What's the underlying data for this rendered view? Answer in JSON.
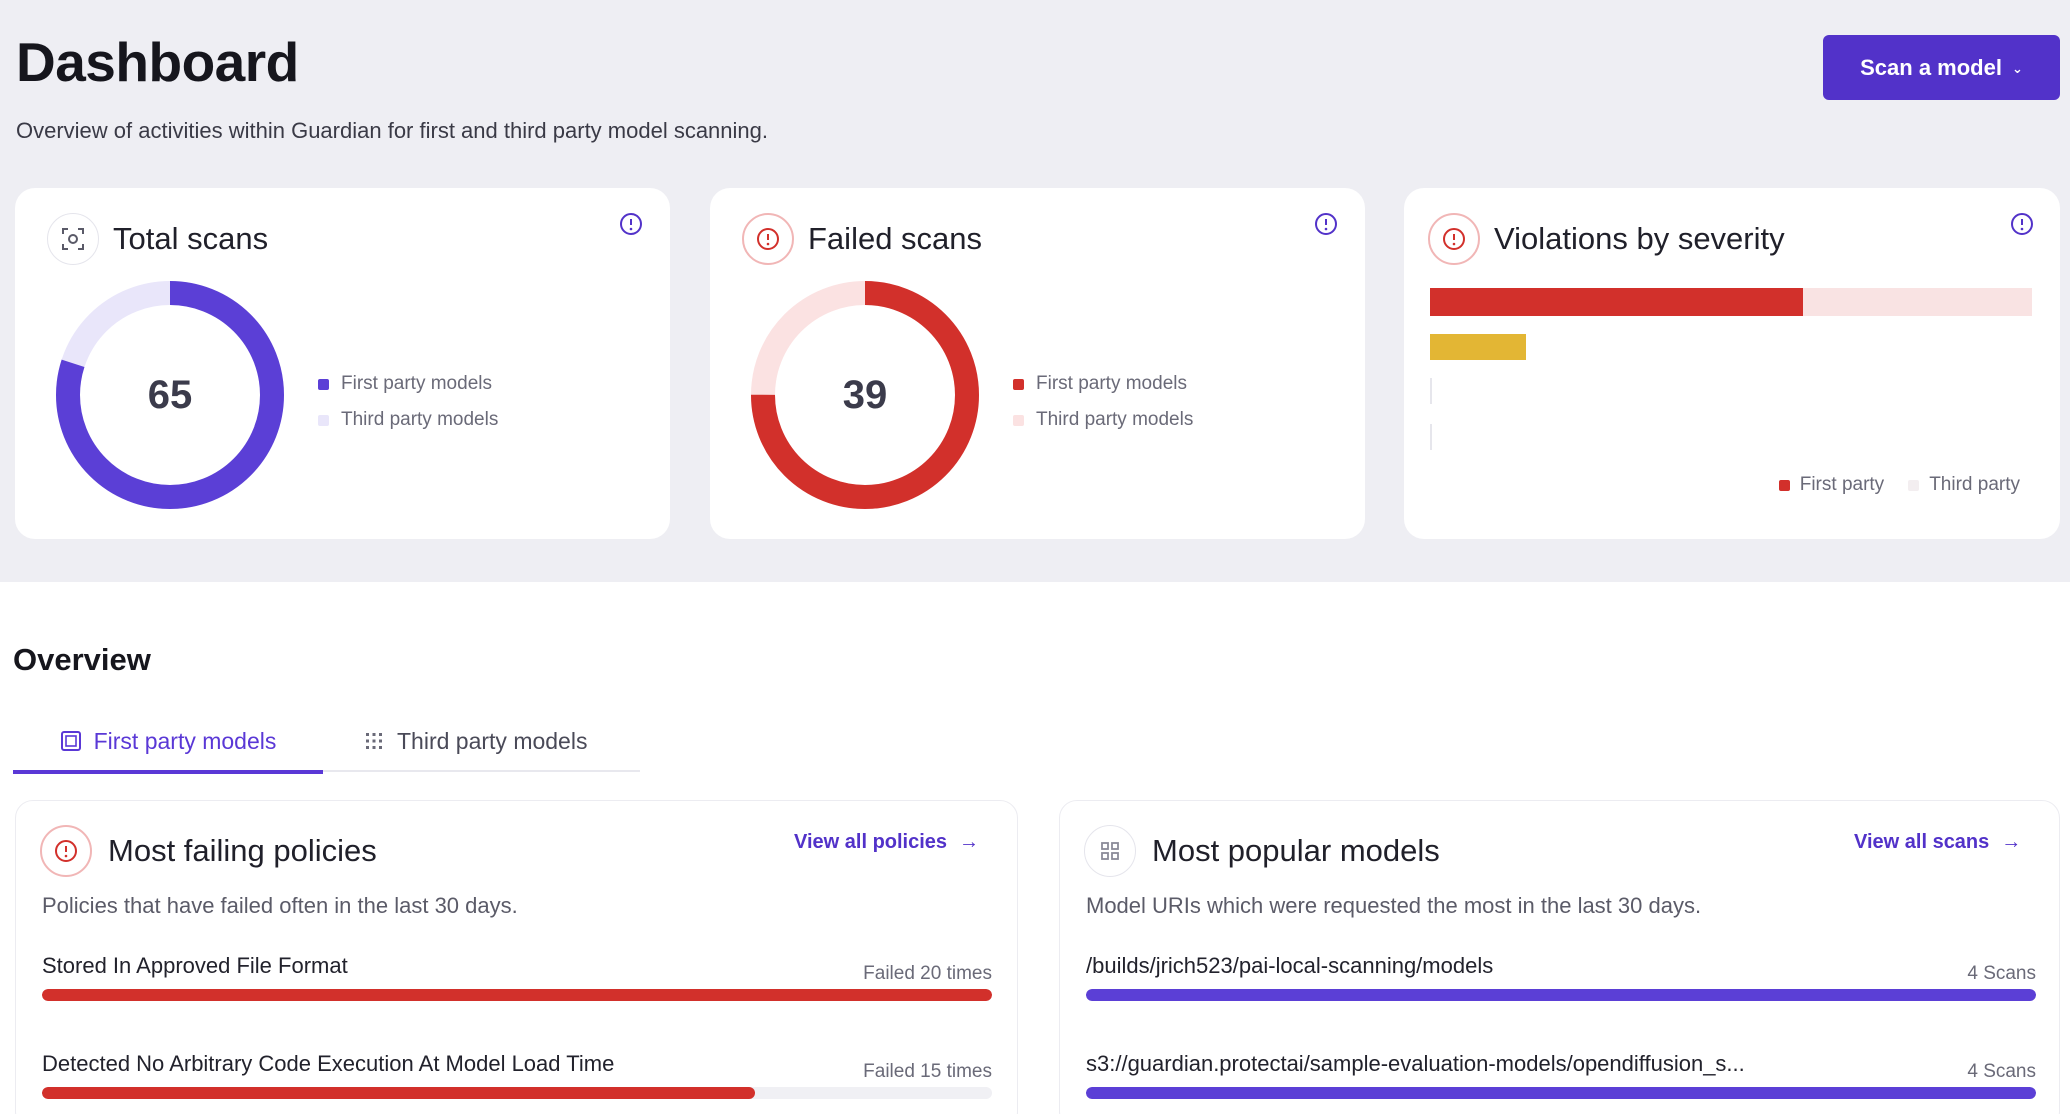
{
  "header": {
    "title": "Dashboard",
    "subtitle": "Overview of activities within Guardian for first and third party model scanning.",
    "scan_button_label": "Scan a model"
  },
  "cards": {
    "total_scans": {
      "title": "Total scans",
      "value": "65",
      "legend": [
        "First party models",
        "Third party models"
      ],
      "first_party_fraction": 0.8
    },
    "failed_scans": {
      "title": "Failed scans",
      "value": "39",
      "legend": [
        "First party models",
        "Third party models"
      ],
      "first_party_fraction": 0.75
    },
    "violations": {
      "title": "Violations by severity",
      "legend": [
        "First party",
        "Third party"
      ],
      "bars": [
        {
          "severity_color": "#d2302b",
          "first_party_fraction": 0.62,
          "total_fraction": 1.0
        },
        {
          "severity_color": "#e3b634",
          "first_party_fraction": 0.16,
          "total_fraction": 0.16
        },
        {
          "severity_color": "#e6e6ec",
          "first_party_fraction": 0.0,
          "total_fraction": 0.0
        },
        {
          "severity_color": "#e6e6ec",
          "first_party_fraction": 0.0,
          "total_fraction": 0.0
        }
      ]
    }
  },
  "overview": {
    "title": "Overview",
    "tabs": [
      {
        "label": "First party models",
        "active": true
      },
      {
        "label": "Third party models",
        "active": false
      }
    ]
  },
  "policies": {
    "title": "Most failing policies",
    "link": "View all policies",
    "subtitle": "Policies that have failed often in the last 30 days.",
    "items": [
      {
        "name": "Stored In Approved File Format",
        "count": "Failed 20 times",
        "fraction": 1.0
      },
      {
        "name": "Detected No Arbitrary Code Execution At Model Load Time",
        "count": "Failed 15 times",
        "fraction": 0.75
      }
    ]
  },
  "models": {
    "title": "Most popular models",
    "link": "View all scans",
    "subtitle": "Model URIs which were requested the most in the last 30 days.",
    "items": [
      {
        "name": "/builds/jrich523/pai-local-scanning/models",
        "count": "4 Scans",
        "fraction": 1.0
      },
      {
        "name": "s3://guardian.protectai/sample-evaluation-models/opendiffusion_s...",
        "count": "4 Scans",
        "fraction": 1.0
      }
    ]
  },
  "colors": {
    "brand": "#5232c9",
    "first_party": "#5b3fd6",
    "third_party": "#e9e6fa",
    "failed_first": "#d2302b",
    "failed_third": "#fbe2e2"
  }
}
